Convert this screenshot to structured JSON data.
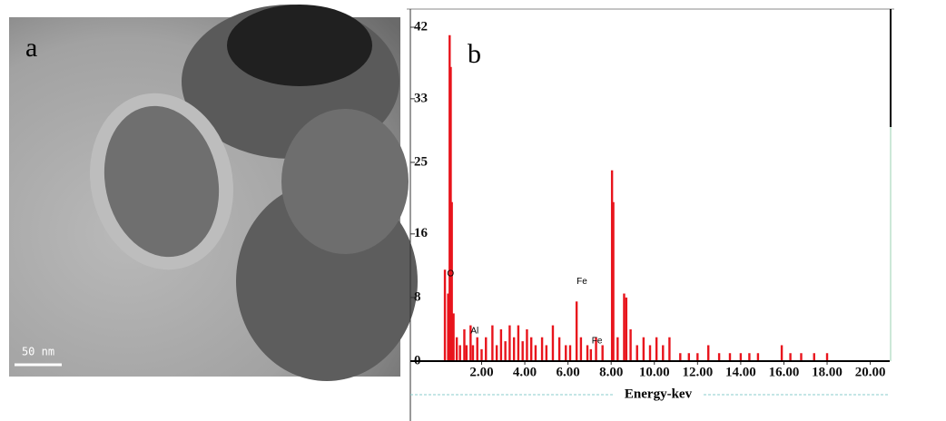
{
  "panel_a": {
    "label": "a",
    "scale_bar": "50 nm"
  },
  "chart_data": {
    "type": "bar",
    "panel_label": "b",
    "x_label": "Energy-kev",
    "color": "#e8141c",
    "x": [
      0.3,
      0.45,
      0.52,
      0.57,
      0.62,
      0.7,
      0.85,
      1.0,
      1.2,
      1.3,
      1.49,
      1.6,
      1.8,
      2.0,
      2.2,
      2.5,
      2.7,
      2.9,
      3.1,
      3.3,
      3.5,
      3.7,
      3.9,
      4.1,
      4.3,
      4.5,
      4.8,
      5.0,
      5.3,
      5.6,
      5.9,
      6.1,
      6.4,
      6.6,
      6.9,
      7.06,
      7.3,
      7.6,
      8.04,
      8.1,
      8.3,
      8.6,
      8.7,
      8.9,
      9.2,
      9.5,
      9.8,
      10.1,
      10.4,
      10.7,
      11.2,
      11.6,
      12.0,
      12.5,
      13.0,
      13.5,
      14.0,
      14.4,
      14.8,
      15.9,
      16.3,
      16.8,
      17.4,
      18.0
    ],
    "values": [
      11.5,
      8.5,
      41,
      37,
      20,
      6,
      3,
      2,
      4,
      2,
      4.5,
      2,
      3,
      1.5,
      3,
      4.5,
      2,
      4,
      2.5,
      4.5,
      3,
      4.5,
      2.5,
      4,
      3,
      2,
      3,
      2,
      4.5,
      3,
      2,
      2,
      7.5,
      3,
      2,
      1.5,
      3,
      2,
      24,
      20,
      3,
      8.5,
      8,
      4,
      2,
      3,
      2,
      3,
      2,
      3,
      1,
      1,
      1,
      2,
      1,
      1,
      1,
      1,
      1,
      2,
      1,
      1,
      1,
      1
    ],
    "xlim": [
      -1.3,
      20.9
    ],
    "xticks": [
      {
        "value": 2,
        "label": "2.00"
      },
      {
        "value": 4,
        "label": "4.00"
      },
      {
        "value": 6,
        "label": "6.00"
      },
      {
        "value": 8,
        "label": "8.00"
      },
      {
        "value": 10,
        "label": "10.00"
      },
      {
        "value": 12,
        "label": "12.00"
      },
      {
        "value": 14,
        "label": "14.00"
      },
      {
        "value": 16,
        "label": "16.00"
      },
      {
        "value": 18,
        "label": "18.00"
      },
      {
        "value": 20,
        "label": "20.00"
      }
    ],
    "ylim": [
      0,
      42
    ],
    "yticks": [
      0,
      8,
      16,
      25,
      33,
      42
    ],
    "annotations": [
      {
        "text": "O",
        "x": 0.4,
        "y": 11
      },
      {
        "text": "Al",
        "x": 1.49,
        "y": 3.8
      },
      {
        "text": "Fe",
        "x": 6.4,
        "y": 10
      },
      {
        "text": "Fe",
        "x": 7.1,
        "y": 2.5
      }
    ]
  }
}
